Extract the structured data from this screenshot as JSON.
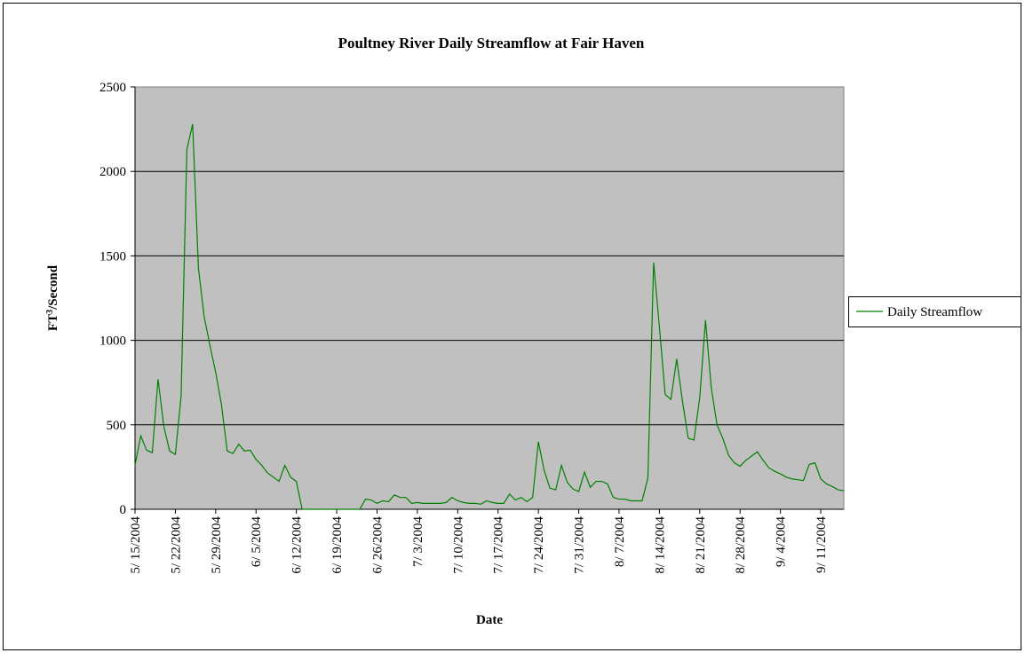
{
  "chart_data": {
    "type": "line",
    "title": "Poultney River Daily Streamflow at Fair Haven",
    "x_label": "Date",
    "y_label": [
      "FT",
      "3",
      "/Second"
    ],
    "categories": [
      "5/ 15/2004",
      null,
      null,
      null,
      null,
      null,
      null,
      "5/ 22/2004",
      null,
      null,
      null,
      null,
      null,
      null,
      "5/ 29/2004",
      null,
      null,
      null,
      null,
      null,
      null,
      "6/ 5/2004",
      null,
      null,
      null,
      null,
      null,
      null,
      "6/ 12/2004",
      null,
      null,
      null,
      null,
      null,
      null,
      "6/ 19/2004",
      null,
      null,
      null,
      null,
      null,
      null,
      "6/ 26/2004",
      null,
      null,
      null,
      null,
      null,
      null,
      "7/ 3/2004",
      null,
      null,
      null,
      null,
      null,
      null,
      "7/ 10/2004",
      null,
      null,
      null,
      null,
      null,
      null,
      "7/ 17/2004",
      null,
      null,
      null,
      null,
      null,
      null,
      "7/ 24/2004",
      null,
      null,
      null,
      null,
      null,
      null,
      "7/ 31/2004",
      null,
      null,
      null,
      null,
      null,
      null,
      "8/ 7/2004",
      null,
      null,
      null,
      null,
      null,
      null,
      "8/ 14/2004",
      null,
      null,
      null,
      null,
      null,
      null,
      "8/ 21/2004",
      null,
      null,
      null,
      null,
      null,
      null,
      "8/ 28/2004",
      null,
      null,
      null,
      null,
      null,
      null,
      "9/ 4/2004",
      null,
      null,
      null,
      null,
      null,
      null,
      "9/ 11/2004",
      null,
      null,
      null,
      null
    ],
    "series": [
      {
        "name": "Daily Streamflow",
        "color": "#008000",
        "values": [
          260,
          435,
          350,
          335,
          770,
          490,
          345,
          325,
          670,
          2130,
          2280,
          1430,
          1140,
          970,
          810,
          620,
          345,
          330,
          385,
          345,
          350,
          295,
          260,
          215,
          190,
          165,
          260,
          190,
          165,
          0,
          0,
          0,
          0,
          0,
          0,
          0,
          0,
          0,
          0,
          0,
          60,
          55,
          35,
          50,
          45,
          85,
          70,
          70,
          35,
          40,
          35,
          35,
          35,
          35,
          40,
          70,
          50,
          40,
          35,
          35,
          30,
          50,
          40,
          35,
          35,
          90,
          55,
          70,
          45,
          70,
          400,
          230,
          125,
          115,
          260,
          160,
          120,
          105,
          220,
          130,
          165,
          165,
          150,
          70,
          60,
          60,
          50,
          50,
          50,
          185,
          1460,
          1080,
          680,
          650,
          890,
          640,
          420,
          410,
          660,
          1120,
          720,
          500,
          420,
          320,
          275,
          255,
          290,
          315,
          340,
          290,
          245,
          225,
          210,
          190,
          180,
          175,
          170,
          265,
          275,
          180,
          150,
          135,
          115,
          110
        ]
      }
    ],
    "ylim": [
      0,
      2500
    ],
    "yticks": [
      0,
      500,
      1000,
      1500,
      2000,
      2500
    ],
    "grid": true,
    "legend": "right"
  }
}
